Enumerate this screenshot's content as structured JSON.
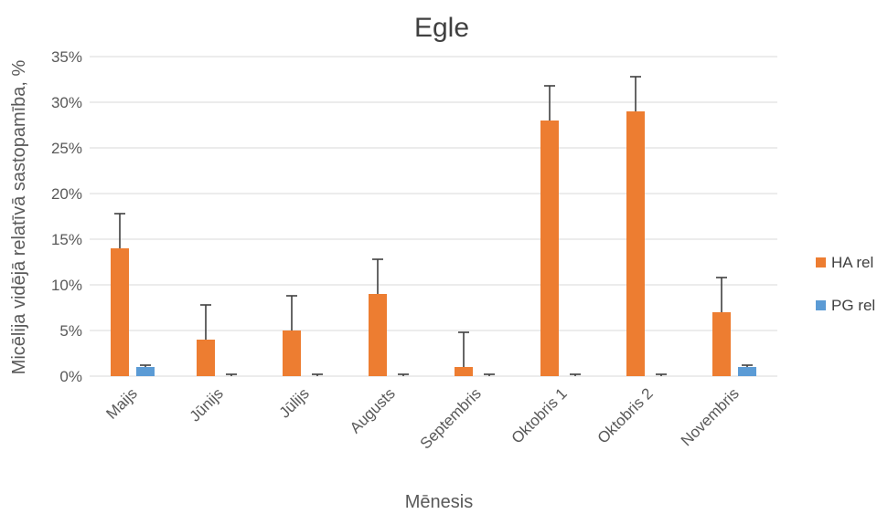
{
  "chart_data": {
    "type": "bar",
    "title": "Egle",
    "xlabel": "Mēnesis",
    "ylabel": "Micēlija vidējā relatīvā sastopamība, %",
    "categories": [
      "Maijs",
      "Jūnijs",
      "Jūlijs",
      "Augusts",
      "Septembris",
      "Oktobris 1",
      "Oktobris 2",
      "Novembris"
    ],
    "series": [
      {
        "name": "HA rel",
        "color": "#ED7D31",
        "values": [
          0.14,
          0.04,
          0.05,
          0.09,
          0.01,
          0.28,
          0.29,
          0.07
        ],
        "error_plus": [
          0.038,
          0.038,
          0.038,
          0.038,
          0.038,
          0.038,
          0.038,
          0.038
        ]
      },
      {
        "name": "PG rel",
        "color": "#5B9BD5",
        "values": [
          0.01,
          0.0,
          0.0,
          0.0,
          0.0,
          0.0,
          0.0,
          0.01
        ],
        "error_plus": [
          0.002,
          0.002,
          0.002,
          0.002,
          0.002,
          0.002,
          0.002,
          0.002
        ]
      }
    ],
    "ylim": [
      0,
      0.35
    ],
    "yticks": [
      "0%",
      "5%",
      "10%",
      "15%",
      "20%",
      "25%",
      "30%",
      "35%"
    ],
    "ytick_values": [
      0,
      0.05,
      0.1,
      0.15,
      0.2,
      0.25,
      0.3,
      0.35
    ],
    "grid": true,
    "legend_position": "right"
  }
}
